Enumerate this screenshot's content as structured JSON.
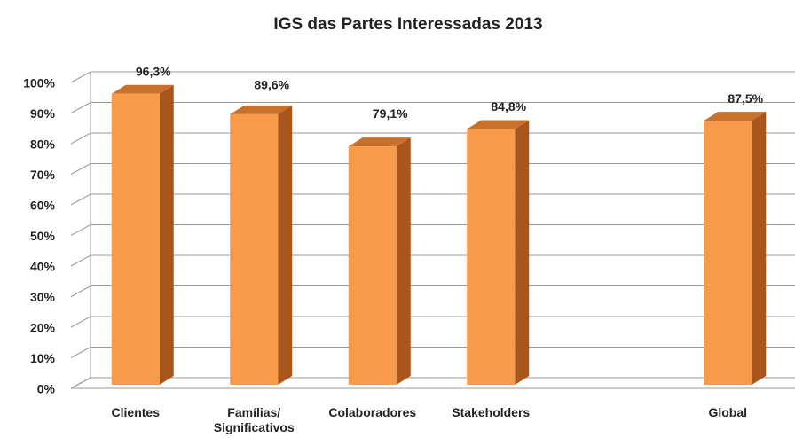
{
  "chart_data": {
    "type": "bar3d",
    "title": "IGS das Partes Interessadas 2013",
    "categories": [
      "Clientes",
      "Famílias/ Significativos",
      "Colaboradores",
      "Stakeholders",
      null,
      "Global"
    ],
    "values": [
      96.3,
      89.6,
      79.1,
      84.8,
      null,
      87.5
    ],
    "value_labels": [
      "96,3%",
      "89,6%",
      "79,1%",
      "84,8%",
      null,
      "87,5%"
    ],
    "color": "#f79a4a",
    "ylim": [
      0,
      100
    ],
    "yticks": [
      {
        "value": 0,
        "label": "0%"
      },
      {
        "value": 10,
        "label": "10%"
      },
      {
        "value": 20,
        "label": "20%"
      },
      {
        "value": 30,
        "label": "30%"
      },
      {
        "value": 40,
        "label": "40%"
      },
      {
        "value": 50,
        "label": "50%"
      },
      {
        "value": 60,
        "label": "60%"
      },
      {
        "value": 70,
        "label": "70%"
      },
      {
        "value": 80,
        "label": "80%"
      },
      {
        "value": 90,
        "label": "90%"
      },
      {
        "value": 100,
        "label": "100%"
      }
    ],
    "grid": true
  }
}
